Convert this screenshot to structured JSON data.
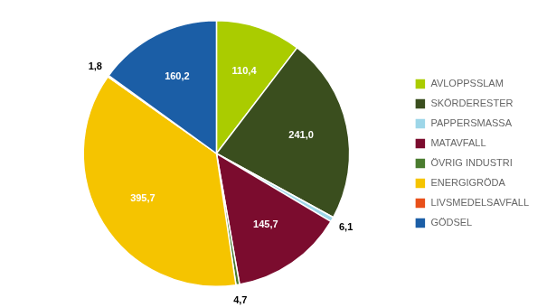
{
  "chart_data": {
    "type": "pie",
    "categories": [
      "AVLOPPSSLAM",
      "SKÖRDERESTER",
      "PAPPERSMASSA",
      "MATAVFALL",
      "ÖVRIG INDUSTRI",
      "ENERGIGRÖDA",
      "LIVSMEDELSAVFALL",
      "GÖDSEL"
    ],
    "values": [
      110.4,
      241.0,
      6.1,
      145.7,
      4.7,
      395.7,
      1.8,
      160.2
    ],
    "value_labels": [
      "110,4",
      "241,0",
      "6,1",
      "145,7",
      "4,7",
      "395,7",
      "1,8",
      "160,2"
    ],
    "colors": [
      "#AACC00",
      "#3A4E1E",
      "#9DD6E8",
      "#7B0C2E",
      "#4A7C2F",
      "#F5C400",
      "#E8501A",
      "#1B5EA6"
    ],
    "data_labels": true,
    "legend": "right"
  }
}
